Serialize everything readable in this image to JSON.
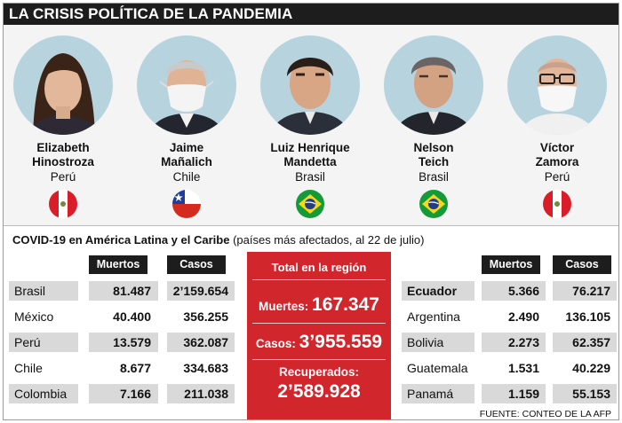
{
  "title": "LA CRISIS POLÍTICA DE LA PANDEMIA",
  "people": [
    {
      "first": "Elizabeth",
      "last": "Hinostroza",
      "country": "Perú",
      "flag": "peru-flag-icon"
    },
    {
      "first": "Jaime",
      "last": "Mañalich",
      "country": "Chile",
      "flag": "chile-flag-icon"
    },
    {
      "first": "Luiz Henrique",
      "last": "Mandetta",
      "country": "Brasil",
      "flag": "brazil-flag-icon"
    },
    {
      "first": "Nelson",
      "last": "Teich",
      "country": "Brasil",
      "flag": "brazil-flag-icon"
    },
    {
      "first": "Víctor",
      "last": "Zamora",
      "country": "Perú",
      "flag": "peru-flag-icon"
    }
  ],
  "section": {
    "title_bold": "COVID-19 en América Latina y el Caribe",
    "title_rest": " (países más afectados, al 22 de julio)"
  },
  "headers": {
    "muertos": "Muertos",
    "casos": "Casos"
  },
  "left_table": [
    {
      "country": "Brasil",
      "muertos": "81.487",
      "casos": "2’159.654"
    },
    {
      "country": "México",
      "muertos": "40.400",
      "casos": "356.255"
    },
    {
      "country": "Perú",
      "muertos": "13.579",
      "casos": "362.087"
    },
    {
      "country": "Chile",
      "muertos": "8.677",
      "casos": "334.683"
    },
    {
      "country": "Colombia",
      "muertos": "7.166",
      "casos": "211.038"
    }
  ],
  "right_table": [
    {
      "country": "Ecuador",
      "muertos": "5.366",
      "casos": "76.217"
    },
    {
      "country": "Argentina",
      "muertos": "2.490",
      "casos": "136.105"
    },
    {
      "country": "Bolivia",
      "muertos": "2.273",
      "casos": "62.357"
    },
    {
      "country": "Guatemala",
      "muertos": "1.531",
      "casos": "40.229"
    },
    {
      "country": "Panamá",
      "muertos": "1.159",
      "casos": "55.153"
    }
  ],
  "total": {
    "heading": "Total en la región",
    "muertes_label": "Muertes: ",
    "muertes_value": "167.347",
    "casos_label": "Casos: ",
    "casos_value": "3’955.559",
    "recuperados_label": "Recuperados:",
    "recuperados_value": "2’589.928"
  },
  "source": "FUENTE: CONTEO DE LA AFP",
  "colors": {
    "accent_red": "#d0262c",
    "header_dark": "#1d1d1d",
    "row_gray": "#d9d9d9",
    "portrait_bg": "#b6d3de"
  }
}
